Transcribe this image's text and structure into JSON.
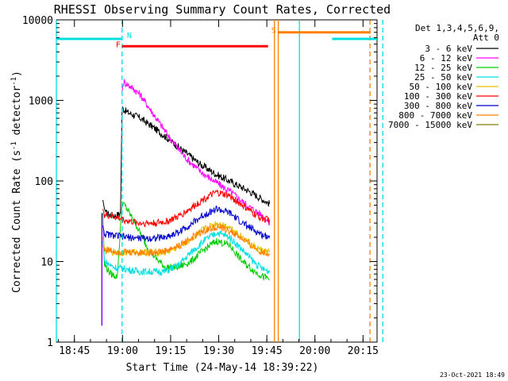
{
  "chart_data": {
    "type": "line",
    "title": "RHESSI Observing Summary Count Rates, Corrected",
    "xlabel": "Start Time (24-May-14 18:39:22)",
    "ylabel": "Corrected Count Rate (s⁻¹ detector⁻¹)",
    "ylabel_parts": {
      "prefix": "Corrected Count Rate (s",
      "exp1": "-1",
      "mid": " detector",
      "exp2": "-1",
      "suffix": ")"
    },
    "y_scale": "log",
    "xlim_minutes": [
      0,
      100
    ],
    "ylim": [
      1,
      10000
    ],
    "x_ticks": [
      {
        "label": "18:45",
        "minute": 5.633
      },
      {
        "label": "19:00",
        "minute": 20.633
      },
      {
        "label": "19:15",
        "minute": 35.633
      },
      {
        "label": "19:30",
        "minute": 50.633
      },
      {
        "label": "19:45",
        "minute": 65.633
      },
      {
        "label": "20:00",
        "minute": 80.633
      },
      {
        "label": "20:15",
        "minute": 95.633
      }
    ],
    "y_ticks": [
      {
        "label": "1",
        "value": 1
      },
      {
        "label": "10",
        "value": 10
      },
      {
        "label": "100",
        "value": 100
      },
      {
        "label": "1000",
        "value": 1000
      },
      {
        "label": "10000",
        "value": 10000
      }
    ],
    "legend_header": [
      "Det 1,3,4,5,6,9,",
      "Att 0"
    ],
    "series": [
      {
        "name": "3 - 6 keV",
        "color": "#000000",
        "x": [
          14.5,
          15.0,
          15.5,
          17.0,
          18.5,
          20.0,
          20.5,
          22.0,
          26.0,
          30.0,
          35.0,
          40.0,
          45.0,
          50.0,
          55.0,
          60.0,
          64.0,
          66.5
        ],
        "y": [
          58,
          45,
          40,
          38,
          37,
          40,
          800,
          720,
          610,
          470,
          330,
          230,
          160,
          120,
          95,
          75,
          60,
          52
        ]
      },
      {
        "name": "6 - 12 keV",
        "color": "#ff00ff",
        "x": [
          20.5,
          21.0,
          23.0,
          26.0,
          30.0,
          35.0,
          40.0,
          45.0,
          50.0,
          55.0,
          60.0,
          64.0,
          66.5
        ],
        "y": [
          1300,
          1700,
          1500,
          1200,
          700,
          360,
          200,
          130,
          95,
          70,
          48,
          38,
          30
        ]
      },
      {
        "name": "12 - 25 keV",
        "color": "#00cc00",
        "x": [
          14.5,
          15.0,
          17.0,
          19.0,
          20.5,
          22.0,
          25.0,
          28.0,
          31.0,
          34.0,
          38.0,
          42.0,
          46.0,
          50.0,
          54.0,
          58.0,
          62.0,
          64.5,
          66.5
        ],
        "y": [
          40,
          9,
          7,
          6.5,
          55,
          45,
          28,
          16,
          11,
          8.5,
          8.5,
          10,
          14,
          18,
          16,
          10,
          7.5,
          6.5,
          6
        ]
      },
      {
        "name": "25 - 50 keV",
        "color": "#00e0e0",
        "x": [
          14.5,
          15.0,
          18.0,
          22.0,
          26.0,
          30.0,
          34.0,
          38.0,
          42.0,
          46.0,
          50.0,
          54.0,
          58.0,
          62.0,
          64.5,
          66.5
        ],
        "y": [
          18,
          10,
          8.5,
          8,
          7.5,
          7.5,
          7.5,
          9,
          13,
          18,
          23,
          20,
          14,
          9.5,
          8,
          7.5
        ]
      },
      {
        "name": "50 - 100 keV",
        "color": "#e8c000",
        "x": [
          14.5,
          15.0,
          18.0,
          22.0,
          26.0,
          30.0,
          34.0,
          38.0,
          42.0,
          46.0,
          50.0,
          54.0,
          58.0,
          62.0,
          64.5,
          66.5
        ],
        "y": [
          20,
          14,
          13,
          13,
          13,
          13,
          13,
          15,
          19,
          25,
          30,
          27,
          20,
          15,
          13.5,
          13
        ]
      },
      {
        "name": "100 - 300 keV",
        "color": "#ff0000",
        "x": [
          14.5,
          15.0,
          18.0,
          22.0,
          26.0,
          30.0,
          34.0,
          38.0,
          42.0,
          46.0,
          50.0,
          54.0,
          58.0,
          62.0,
          64.5,
          66.5
        ],
        "y": [
          45,
          38,
          36,
          32,
          30,
          30,
          31,
          36,
          46,
          60,
          72,
          65,
          50,
          38,
          34,
          33
        ]
      },
      {
        "name": "300 - 800 keV",
        "color": "#0000cc",
        "x": [
          14.5,
          15.0,
          18.0,
          22.0,
          26.0,
          30.0,
          34.0,
          38.0,
          42.0,
          46.0,
          50.0,
          54.0,
          58.0,
          62.0,
          64.5,
          66.5
        ],
        "y": [
          28,
          22,
          21,
          20,
          19.5,
          19.5,
          20,
          23,
          29,
          38,
          45,
          40,
          30,
          24,
          21,
          21
        ]
      },
      {
        "name": "800 - 7000 keV",
        "color": "#ff8000",
        "x": [
          14.5,
          15.0,
          18.0,
          22.0,
          26.0,
          30.0,
          34.0,
          38.0,
          42.0,
          46.0,
          50.0,
          54.0,
          58.0,
          62.0,
          64.5,
          66.5
        ],
        "y": [
          16,
          14,
          13.5,
          13,
          13,
          13,
          13.5,
          15.5,
          19.5,
          24,
          27,
          24,
          19,
          14.5,
          13,
          12.5
        ]
      },
      {
        "name": "7000 - 15000 keV",
        "color": "#808000",
        "x": [],
        "y": []
      }
    ],
    "annotations": [
      {
        "id": "night-marker",
        "label": "N",
        "color": "#00e0e0",
        "x_start": 0,
        "x_end": 20.5,
        "x_resume": 86.0,
        "x_resume_end": 100.0,
        "y": 5800
      },
      {
        "id": "flare-marker",
        "label": "F",
        "color": "#ff0000",
        "x_start": 20.5,
        "x_end": 66.0,
        "y": 4700
      },
      {
        "id": "saa-marker",
        "label": "S",
        "color": "#ff8000",
        "x_start": 69.0,
        "x_end": 98.0,
        "y": 7000
      }
    ],
    "vertical_lines": [
      {
        "id": "night-start-line",
        "color": "#00e0e0",
        "x": 0.0,
        "style": "solid"
      },
      {
        "id": "night-end-line",
        "color": "#00e0e0",
        "x": 20.5,
        "style": "dashed"
      },
      {
        "id": "saa-start-line",
        "color": "#ff8000",
        "x": 68.0,
        "style": "solid"
      },
      {
        "id": "saa-start-line-2",
        "color": "#ff8000",
        "x": 69.2,
        "style": "solid"
      },
      {
        "id": "night-start-line-2",
        "color": "#00e0e0",
        "x": 75.8,
        "style": "solid"
      },
      {
        "id": "saa-dash-line",
        "color": "#ff8000",
        "x": 97.8,
        "style": "dashed"
      },
      {
        "id": "night-dash-line",
        "color": "#00e0e0",
        "x": 101.8,
        "style": "dashed"
      }
    ],
    "attenuator_spike": {
      "color": "#8000ff",
      "x": 14.2,
      "y_low": 1.6,
      "y_high": 40
    }
  },
  "footer_timestamp": "23-Oct-2021 18:49"
}
